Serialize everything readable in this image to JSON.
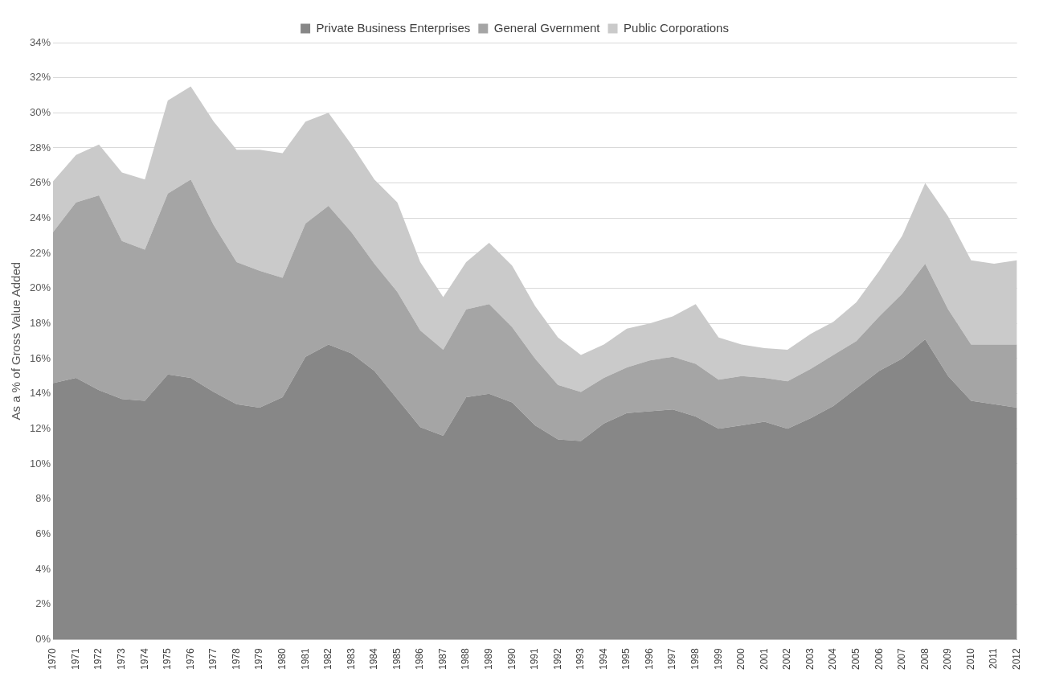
{
  "chart_data": {
    "type": "area",
    "stacked": true,
    "ylabel": "As a % of Gross Value Added",
    "categories": [
      "1970",
      "1971",
      "1972",
      "1973",
      "1974",
      "1975",
      "1976",
      "1977",
      "1978",
      "1979",
      "1980",
      "1981",
      "1982",
      "1983",
      "1984",
      "1985",
      "1986",
      "1987",
      "1988",
      "1989",
      "1990",
      "1991",
      "1992",
      "1993",
      "1994",
      "1995",
      "1996",
      "1997",
      "1998",
      "1999",
      "2000",
      "2001",
      "2002",
      "2003",
      "2004",
      "2005",
      "2006",
      "2007",
      "2008",
      "2009",
      "2010",
      "2011",
      "2012"
    ],
    "series": [
      {
        "name": "Private Business Enterprises",
        "color": "#878787",
        "values": [
          14.6,
          14.9,
          14.2,
          13.7,
          13.6,
          15.1,
          14.9,
          14.1,
          13.4,
          13.2,
          13.8,
          16.1,
          16.8,
          16.3,
          15.3,
          13.7,
          12.1,
          11.6,
          13.8,
          14.0,
          13.5,
          12.2,
          11.4,
          11.3,
          12.3,
          12.9,
          13.0,
          13.1,
          12.7,
          12.0,
          12.2,
          12.4,
          12.0,
          12.6,
          13.3,
          14.3,
          15.3,
          16.0,
          17.1,
          15.0,
          13.6,
          13.4,
          13.2
        ]
      },
      {
        "name": "General Gvernment",
        "color": "#a5a5a5",
        "values": [
          8.6,
          10.0,
          11.1,
          9.0,
          8.6,
          10.3,
          11.3,
          9.5,
          8.1,
          7.8,
          6.8,
          7.6,
          7.9,
          6.9,
          6.1,
          6.1,
          5.5,
          4.9,
          5.0,
          5.1,
          4.3,
          3.8,
          3.1,
          2.8,
          2.6,
          2.6,
          2.9,
          3.0,
          3.0,
          2.8,
          2.8,
          2.5,
          2.7,
          2.8,
          2.9,
          2.7,
          3.1,
          3.7,
          4.3,
          3.8,
          3.2,
          3.4,
          3.6
        ]
      },
      {
        "name": "Public Corporations",
        "color": "#cacaca",
        "values": [
          2.9,
          2.7,
          2.9,
          3.9,
          4.0,
          5.3,
          5.3,
          5.9,
          6.4,
          6.9,
          7.1,
          5.8,
          5.3,
          5.0,
          4.8,
          5.1,
          3.9,
          3.0,
          2.7,
          3.5,
          3.5,
          3.0,
          2.7,
          2.1,
          1.9,
          2.2,
          2.1,
          2.3,
          3.4,
          2.4,
          1.8,
          1.7,
          1.8,
          2.0,
          1.9,
          2.2,
          2.6,
          3.3,
          4.6,
          5.3,
          4.8,
          4.6,
          4.8
        ]
      }
    ],
    "ylim": [
      0,
      34
    ],
    "yticks": [
      {
        "value": 0,
        "label": "0%"
      },
      {
        "value": 2,
        "label": "2%"
      },
      {
        "value": 4,
        "label": "4%"
      },
      {
        "value": 6,
        "label": "6%"
      },
      {
        "value": 8,
        "label": "8%"
      },
      {
        "value": 10,
        "label": "10%"
      },
      {
        "value": 12,
        "label": "12%"
      },
      {
        "value": 14,
        "label": "14%"
      },
      {
        "value": 16,
        "label": "16%"
      },
      {
        "value": 18,
        "label": "18%"
      },
      {
        "value": 20,
        "label": "20%"
      },
      {
        "value": 22,
        "label": "22%"
      },
      {
        "value": 24,
        "label": "24%"
      },
      {
        "value": 26,
        "label": "26%"
      },
      {
        "value": 28,
        "label": "28%"
      },
      {
        "value": 30,
        "label": "30%"
      },
      {
        "value": 32,
        "label": "32%"
      },
      {
        "value": 34,
        "label": "34%"
      }
    ],
    "grid": "y",
    "legend": "top"
  }
}
